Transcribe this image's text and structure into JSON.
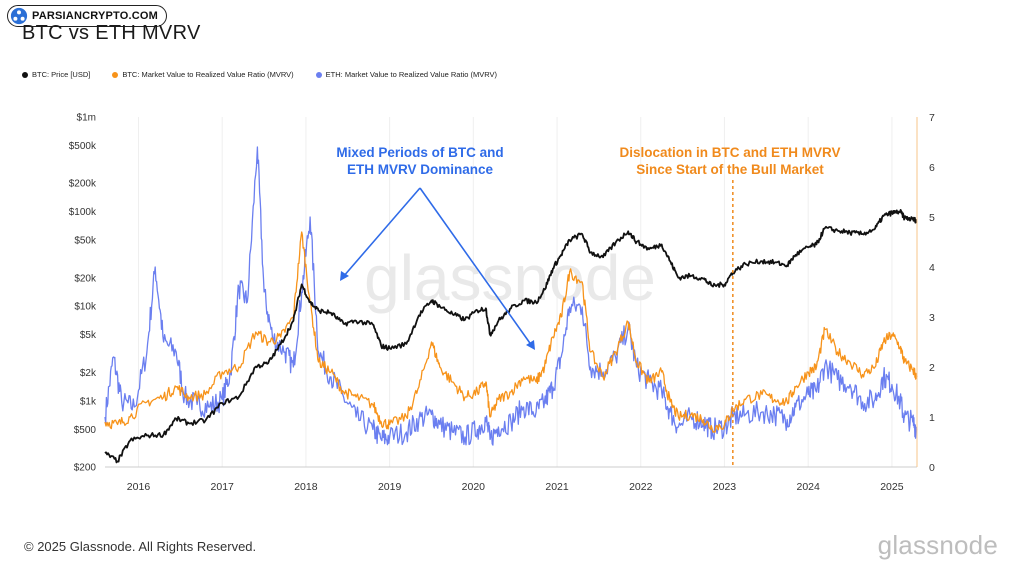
{
  "badge": {
    "text": "PARSIANCRYPTO.COM"
  },
  "title": "BTC vs ETH MVRV",
  "legend": [
    {
      "label": "BTC: Price [USD]",
      "color": "#111111"
    },
    {
      "label": "BTC: Market Value to Realized Value Ratio (MVRV)",
      "color": "#f7931a"
    },
    {
      "label": "ETH: Market Value to Realized Value Ratio (MVRV)",
      "color": "#6b7ff0"
    }
  ],
  "annotations": {
    "blue_line1": "Mixed Periods of BTC and",
    "blue_line2": "ETH MVRV Dominance",
    "orange_line1": "Dislocation in BTC and ETH MVRV",
    "orange_line2": "Since Start of the Bull Market"
  },
  "footer": "© 2025 Glassnode. All Rights Reserved.",
  "brand": "glassnode",
  "watermark": "glassnode",
  "colors": {
    "btc_price": "#111111",
    "btc_mvrv": "#f7931a",
    "eth_mvrv": "#6b7ff0",
    "blue_annotation": "#2f6be8",
    "orange_annotation": "#f08a1c"
  },
  "chart_data": {
    "type": "line",
    "title": "BTC vs ETH MVRV",
    "x_axis": {
      "ticks": [
        "2016",
        "2017",
        "2018",
        "2019",
        "2020",
        "2021",
        "2022",
        "2023",
        "2024",
        "2025"
      ],
      "range": [
        2015.6,
        2025.3
      ]
    },
    "y_left": {
      "scale": "log",
      "range": [
        200,
        1000000
      ],
      "ticks": [
        {
          "value": 200,
          "label": "$200"
        },
        {
          "value": 500,
          "label": "$500"
        },
        {
          "value": 1000,
          "label": "$1k"
        },
        {
          "value": 2000,
          "label": "$2k"
        },
        {
          "value": 5000,
          "label": "$5k"
        },
        {
          "value": 10000,
          "label": "$10k"
        },
        {
          "value": 20000,
          "label": "$20k"
        },
        {
          "value": 50000,
          "label": "$50k"
        },
        {
          "value": 100000,
          "label": "$100k"
        },
        {
          "value": 200000,
          "label": "$200k"
        },
        {
          "value": 500000,
          "label": "$500k"
        },
        {
          "value": 1000000,
          "label": "$1m"
        }
      ]
    },
    "y_right": {
      "scale": "linear",
      "range": [
        0,
        7
      ],
      "ticks": [
        "0",
        "1",
        "2",
        "3",
        "4",
        "5",
        "6",
        "7"
      ]
    },
    "vertical_marker": {
      "x": 2023.1,
      "style": "dashed"
    },
    "series": [
      {
        "name": "BTC: Price [USD]",
        "axis": "left",
        "points": [
          [
            2015.6,
            280
          ],
          [
            2015.75,
            230
          ],
          [
            2015.9,
            380
          ],
          [
            2016.1,
            430
          ],
          [
            2016.3,
            440
          ],
          [
            2016.45,
            650
          ],
          [
            2016.6,
            580
          ],
          [
            2016.8,
            620
          ],
          [
            2017.0,
            950
          ],
          [
            2017.2,
            1100
          ],
          [
            2017.4,
            2300
          ],
          [
            2017.55,
            2500
          ],
          [
            2017.7,
            4000
          ],
          [
            2017.85,
            7000
          ],
          [
            2017.95,
            17000
          ],
          [
            2018.05,
            11000
          ],
          [
            2018.15,
            9000
          ],
          [
            2018.3,
            8500
          ],
          [
            2018.45,
            6500
          ],
          [
            2018.6,
            7000
          ],
          [
            2018.8,
            6400
          ],
          [
            2018.9,
            3800
          ],
          [
            2019.0,
            3600
          ],
          [
            2019.2,
            4000
          ],
          [
            2019.35,
            8000
          ],
          [
            2019.5,
            11500
          ],
          [
            2019.6,
            10000
          ],
          [
            2019.75,
            8300
          ],
          [
            2019.9,
            7200
          ],
          [
            2020.05,
            9000
          ],
          [
            2020.15,
            9500
          ],
          [
            2020.2,
            5000
          ],
          [
            2020.3,
            7000
          ],
          [
            2020.45,
            9500
          ],
          [
            2020.6,
            11500
          ],
          [
            2020.75,
            11000
          ],
          [
            2020.85,
            15000
          ],
          [
            2020.95,
            25000
          ],
          [
            2021.05,
            35000
          ],
          [
            2021.15,
            50000
          ],
          [
            2021.3,
            58000
          ],
          [
            2021.4,
            37000
          ],
          [
            2021.55,
            33000
          ],
          [
            2021.7,
            47000
          ],
          [
            2021.85,
            62000
          ],
          [
            2021.95,
            48000
          ],
          [
            2022.1,
            40000
          ],
          [
            2022.25,
            45000
          ],
          [
            2022.35,
            30000
          ],
          [
            2022.45,
            20000
          ],
          [
            2022.6,
            21000
          ],
          [
            2022.75,
            19500
          ],
          [
            2022.85,
            16500
          ],
          [
            2023.0,
            17000
          ],
          [
            2023.1,
            23000
          ],
          [
            2023.25,
            28000
          ],
          [
            2023.45,
            30000
          ],
          [
            2023.6,
            29000
          ],
          [
            2023.75,
            27000
          ],
          [
            2023.85,
            35000
          ],
          [
            2024.0,
            42000
          ],
          [
            2024.1,
            45000
          ],
          [
            2024.2,
            67000
          ],
          [
            2024.35,
            63000
          ],
          [
            2024.5,
            60000
          ],
          [
            2024.65,
            58000
          ],
          [
            2024.8,
            66000
          ],
          [
            2024.9,
            90000
          ],
          [
            2025.0,
            97000
          ],
          [
            2025.1,
            100000
          ],
          [
            2025.15,
            86000
          ],
          [
            2025.25,
            83000
          ],
          [
            2025.3,
            80000
          ]
        ]
      },
      {
        "name": "BTC: Market Value to Realized Value Ratio (MVRV)",
        "axis": "right",
        "points": [
          [
            2015.6,
            0.9
          ],
          [
            2015.75,
            0.85
          ],
          [
            2015.9,
            1.0
          ],
          [
            2016.1,
            1.3
          ],
          [
            2016.3,
            1.4
          ],
          [
            2016.45,
            1.6
          ],
          [
            2016.6,
            1.4
          ],
          [
            2016.8,
            1.45
          ],
          [
            2017.0,
            1.9
          ],
          [
            2017.2,
            2.0
          ],
          [
            2017.4,
            2.7
          ],
          [
            2017.55,
            2.5
          ],
          [
            2017.7,
            2.6
          ],
          [
            2017.85,
            3.0
          ],
          [
            2017.95,
            4.7
          ],
          [
            2018.05,
            3.3
          ],
          [
            2018.15,
            2.1
          ],
          [
            2018.3,
            1.9
          ],
          [
            2018.45,
            1.5
          ],
          [
            2018.6,
            1.4
          ],
          [
            2018.8,
            1.25
          ],
          [
            2018.9,
            0.9
          ],
          [
            2019.0,
            0.85
          ],
          [
            2019.2,
            1.0
          ],
          [
            2019.35,
            1.6
          ],
          [
            2019.5,
            2.5
          ],
          [
            2019.6,
            2.0
          ],
          [
            2019.75,
            1.7
          ],
          [
            2019.9,
            1.4
          ],
          [
            2020.05,
            1.5
          ],
          [
            2020.15,
            1.7
          ],
          [
            2020.2,
            1.0
          ],
          [
            2020.3,
            1.35
          ],
          [
            2020.45,
            1.5
          ],
          [
            2020.6,
            1.8
          ],
          [
            2020.75,
            1.7
          ],
          [
            2020.85,
            2.0
          ],
          [
            2020.95,
            2.6
          ],
          [
            2021.05,
            3.0
          ],
          [
            2021.15,
            3.9
          ],
          [
            2021.3,
            3.7
          ],
          [
            2021.4,
            2.3
          ],
          [
            2021.55,
            1.8
          ],
          [
            2021.7,
            2.3
          ],
          [
            2021.85,
            2.9
          ],
          [
            2021.95,
            2.1
          ],
          [
            2022.1,
            1.7
          ],
          [
            2022.25,
            1.9
          ],
          [
            2022.35,
            1.3
          ],
          [
            2022.45,
            1.0
          ],
          [
            2022.6,
            1.05
          ],
          [
            2022.75,
            0.95
          ],
          [
            2022.85,
            0.78
          ],
          [
            2023.0,
            0.85
          ],
          [
            2023.1,
            1.15
          ],
          [
            2023.25,
            1.35
          ],
          [
            2023.45,
            1.45
          ],
          [
            2023.6,
            1.35
          ],
          [
            2023.75,
            1.3
          ],
          [
            2023.85,
            1.6
          ],
          [
            2024.0,
            1.9
          ],
          [
            2024.1,
            2.0
          ],
          [
            2024.2,
            2.75
          ],
          [
            2024.35,
            2.3
          ],
          [
            2024.5,
            2.1
          ],
          [
            2024.65,
            1.85
          ],
          [
            2024.8,
            2.0
          ],
          [
            2024.9,
            2.5
          ],
          [
            2025.0,
            2.65
          ],
          [
            2025.1,
            2.4
          ],
          [
            2025.15,
            2.1
          ],
          [
            2025.25,
            1.95
          ],
          [
            2025.3,
            1.8
          ]
        ]
      },
      {
        "name": "ETH: Market Value to Realized Value Ratio (MVRV)",
        "axis": "right",
        "points": [
          [
            2015.6,
            1.0
          ],
          [
            2015.7,
            2.2
          ],
          [
            2015.8,
            1.3
          ],
          [
            2015.95,
            1.2
          ],
          [
            2016.1,
            2.3
          ],
          [
            2016.2,
            4.0
          ],
          [
            2016.3,
            2.5
          ],
          [
            2016.45,
            2.3
          ],
          [
            2016.55,
            1.4
          ],
          [
            2016.7,
            1.25
          ],
          [
            2016.85,
            1.2
          ],
          [
            2017.0,
            1.35
          ],
          [
            2017.1,
            1.9
          ],
          [
            2017.2,
            3.6
          ],
          [
            2017.3,
            3.3
          ],
          [
            2017.42,
            6.4
          ],
          [
            2017.5,
            3.5
          ],
          [
            2017.6,
            2.6
          ],
          [
            2017.75,
            2.3
          ],
          [
            2017.85,
            2.0
          ],
          [
            2017.95,
            3.5
          ],
          [
            2018.05,
            5.0
          ],
          [
            2018.15,
            2.3
          ],
          [
            2018.3,
            1.8
          ],
          [
            2018.45,
            1.4
          ],
          [
            2018.6,
            1.0
          ],
          [
            2018.8,
            0.75
          ],
          [
            2018.9,
            0.55
          ],
          [
            2019.0,
            0.6
          ],
          [
            2019.2,
            0.7
          ],
          [
            2019.35,
            0.95
          ],
          [
            2019.5,
            1.05
          ],
          [
            2019.6,
            0.85
          ],
          [
            2019.75,
            0.7
          ],
          [
            2019.9,
            0.6
          ],
          [
            2020.05,
            0.75
          ],
          [
            2020.15,
            0.95
          ],
          [
            2020.2,
            0.55
          ],
          [
            2020.3,
            0.8
          ],
          [
            2020.45,
            0.9
          ],
          [
            2020.6,
            1.2
          ],
          [
            2020.75,
            1.1
          ],
          [
            2020.85,
            1.3
          ],
          [
            2020.95,
            1.6
          ],
          [
            2021.05,
            2.2
          ],
          [
            2021.15,
            3.2
          ],
          [
            2021.3,
            3.2
          ],
          [
            2021.4,
            2.0
          ],
          [
            2021.55,
            1.9
          ],
          [
            2021.7,
            2.2
          ],
          [
            2021.85,
            2.8
          ],
          [
            2021.95,
            2.0
          ],
          [
            2022.1,
            1.7
          ],
          [
            2022.25,
            1.5
          ],
          [
            2022.35,
            1.1
          ],
          [
            2022.45,
            0.8
          ],
          [
            2022.6,
            1.0
          ],
          [
            2022.75,
            0.9
          ],
          [
            2022.85,
            0.75
          ],
          [
            2023.0,
            0.8
          ],
          [
            2023.1,
            1.0
          ],
          [
            2023.25,
            1.05
          ],
          [
            2023.45,
            1.1
          ],
          [
            2023.6,
            1.05
          ],
          [
            2023.75,
            0.95
          ],
          [
            2023.85,
            1.2
          ],
          [
            2024.0,
            1.45
          ],
          [
            2024.1,
            1.5
          ],
          [
            2024.2,
            2.05
          ],
          [
            2024.35,
            1.75
          ],
          [
            2024.5,
            1.65
          ],
          [
            2024.65,
            1.3
          ],
          [
            2024.8,
            1.35
          ],
          [
            2024.9,
            1.8
          ],
          [
            2025.0,
            1.65
          ],
          [
            2025.1,
            1.3
          ],
          [
            2025.15,
            1.0
          ],
          [
            2025.25,
            0.9
          ],
          [
            2025.3,
            0.75
          ]
        ]
      }
    ]
  }
}
